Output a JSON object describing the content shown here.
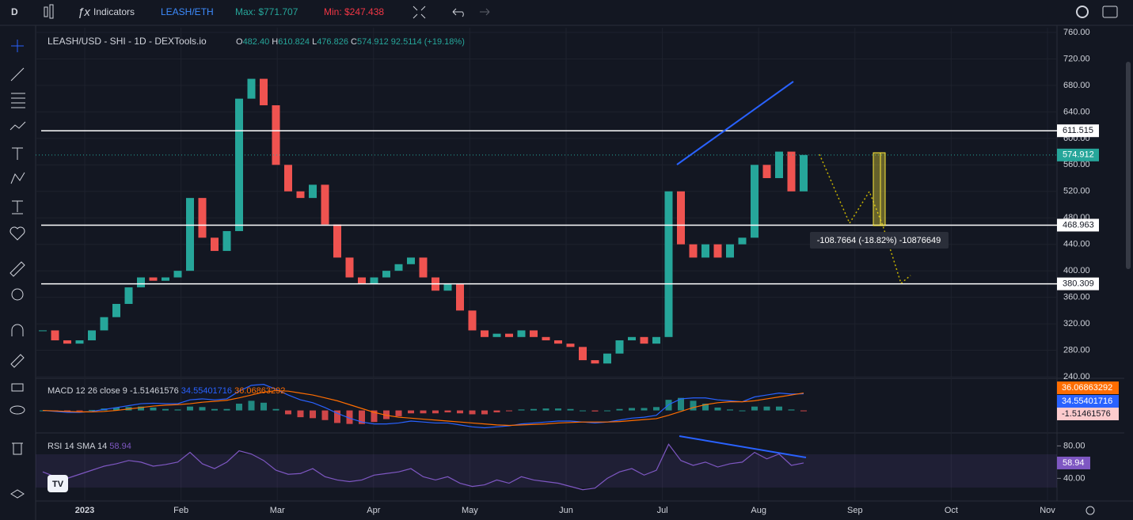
{
  "toolbar": {
    "interval": "D",
    "indicators": "Indicators",
    "pair": "LEASH/ETH",
    "max": "Max: $771.707",
    "min": "Min: $247.438"
  },
  "legend": {
    "title": "LEASH/USD - SHI - 1D - DEXTools.io",
    "ohlc": [
      {
        "key": "O",
        "value": "482.40"
      },
      {
        "key": "H",
        "value": "610.824"
      },
      {
        "key": "L",
        "value": "476.826"
      },
      {
        "key": "C",
        "value": "574.912"
      }
    ],
    "change": "92.5114 (+19.18%)"
  },
  "chart_data": {
    "type": "candlestick",
    "closes": [
      310,
      295,
      290,
      295,
      310,
      330,
      350,
      375,
      390,
      385,
      390,
      400,
      510,
      450,
      430,
      460,
      660,
      690,
      650,
      560,
      520,
      510,
      530,
      470,
      420,
      390,
      380,
      390,
      400,
      410,
      420,
      390,
      370,
      380,
      340,
      310,
      300,
      305,
      300,
      310,
      300,
      295,
      290,
      285,
      265,
      260,
      275,
      295,
      300,
      290,
      300,
      520,
      440,
      420,
      440,
      420,
      440,
      450,
      560,
      540,
      580,
      520,
      575
    ],
    "ylim": [
      240,
      760
    ],
    "yticks": [
      {
        "value": 760,
        "label": "760.00"
      },
      {
        "value": 720,
        "label": "720.00"
      },
      {
        "value": 680,
        "label": "680.00"
      },
      {
        "value": 640,
        "label": "640.00"
      },
      {
        "value": 600,
        "label": "600.00"
      },
      {
        "value": 560,
        "label": "560.00"
      },
      {
        "value": 520,
        "label": "520.00"
      },
      {
        "value": 480,
        "label": "480.00"
      },
      {
        "value": 440,
        "label": "440.00"
      },
      {
        "value": 400,
        "label": "400.00"
      },
      {
        "value": 360,
        "label": "360.00"
      },
      {
        "value": 320,
        "label": "320.00"
      },
      {
        "value": 280,
        "label": "280.00"
      },
      {
        "value": 240,
        "label": "240.00"
      }
    ],
    "levels": [
      611.515,
      468.963,
      380.309
    ],
    "last_price": 574.912,
    "measure": "-108.7664 (-18.82%) -10876649",
    "x_labels": [
      "2023",
      "Feb",
      "Mar",
      "Apr",
      "May",
      "Jun",
      "Jul",
      "Aug",
      "Sep",
      "Oct",
      "Nov"
    ],
    "macd": {
      "title": "MACD 12 26 close 9",
      "hist_label": "-1.51461576",
      "macd_label": "34.55401716",
      "signal_label": "36.06863292",
      "ylim": [
        -45,
        60
      ],
      "macd": [
        0,
        -2,
        -4,
        -4,
        -2,
        2,
        6,
        10,
        14,
        15,
        14,
        14,
        22,
        24,
        22,
        24,
        40,
        52,
        54,
        44,
        32,
        22,
        16,
        6,
        -6,
        -16,
        -24,
        -28,
        -28,
        -26,
        -22,
        -24,
        -26,
        -26,
        -30,
        -34,
        -36,
        -34,
        -32,
        -28,
        -26,
        -24,
        -22,
        -22,
        -24,
        -26,
        -24,
        -20,
        -16,
        -14,
        -10,
        12,
        24,
        26,
        26,
        22,
        20,
        18,
        28,
        32,
        36,
        34,
        34.55
      ],
      "signal": [
        0,
        -1,
        -2,
        -3,
        -3,
        -2,
        0,
        3,
        6,
        9,
        11,
        12,
        14,
        17,
        19,
        21,
        26,
        32,
        38,
        41,
        40,
        36,
        32,
        26,
        20,
        12,
        4,
        -4,
        -10,
        -14,
        -16,
        -18,
        -20,
        -22,
        -24,
        -26,
        -28,
        -30,
        -31,
        -30,
        -29,
        -28,
        -26,
        -25,
        -24,
        -24,
        -24,
        -23,
        -21,
        -19,
        -17,
        -10,
        -2,
        6,
        12,
        16,
        18,
        18,
        20,
        24,
        28,
        32,
        36.07
      ]
    },
    "rsi": {
      "title": "RSI 14 SMA 14",
      "last": 58.94,
      "ylim": [
        15,
        95
      ],
      "yticks": [
        {
          "value": 80,
          "label": "80.00"
        },
        {
          "value": 40,
          "label": "40.00"
        }
      ],
      "values": [
        48,
        42,
        40,
        45,
        50,
        55,
        58,
        62,
        60,
        55,
        57,
        60,
        72,
        58,
        52,
        60,
        74,
        70,
        62,
        50,
        45,
        46,
        52,
        42,
        38,
        36,
        38,
        44,
        46,
        48,
        52,
        42,
        38,
        42,
        34,
        30,
        32,
        38,
        34,
        42,
        38,
        36,
        34,
        30,
        26,
        28,
        40,
        48,
        52,
        44,
        50,
        82,
        62,
        56,
        60,
        54,
        58,
        60,
        72,
        64,
        70,
        56,
        58.94
      ]
    }
  }
}
